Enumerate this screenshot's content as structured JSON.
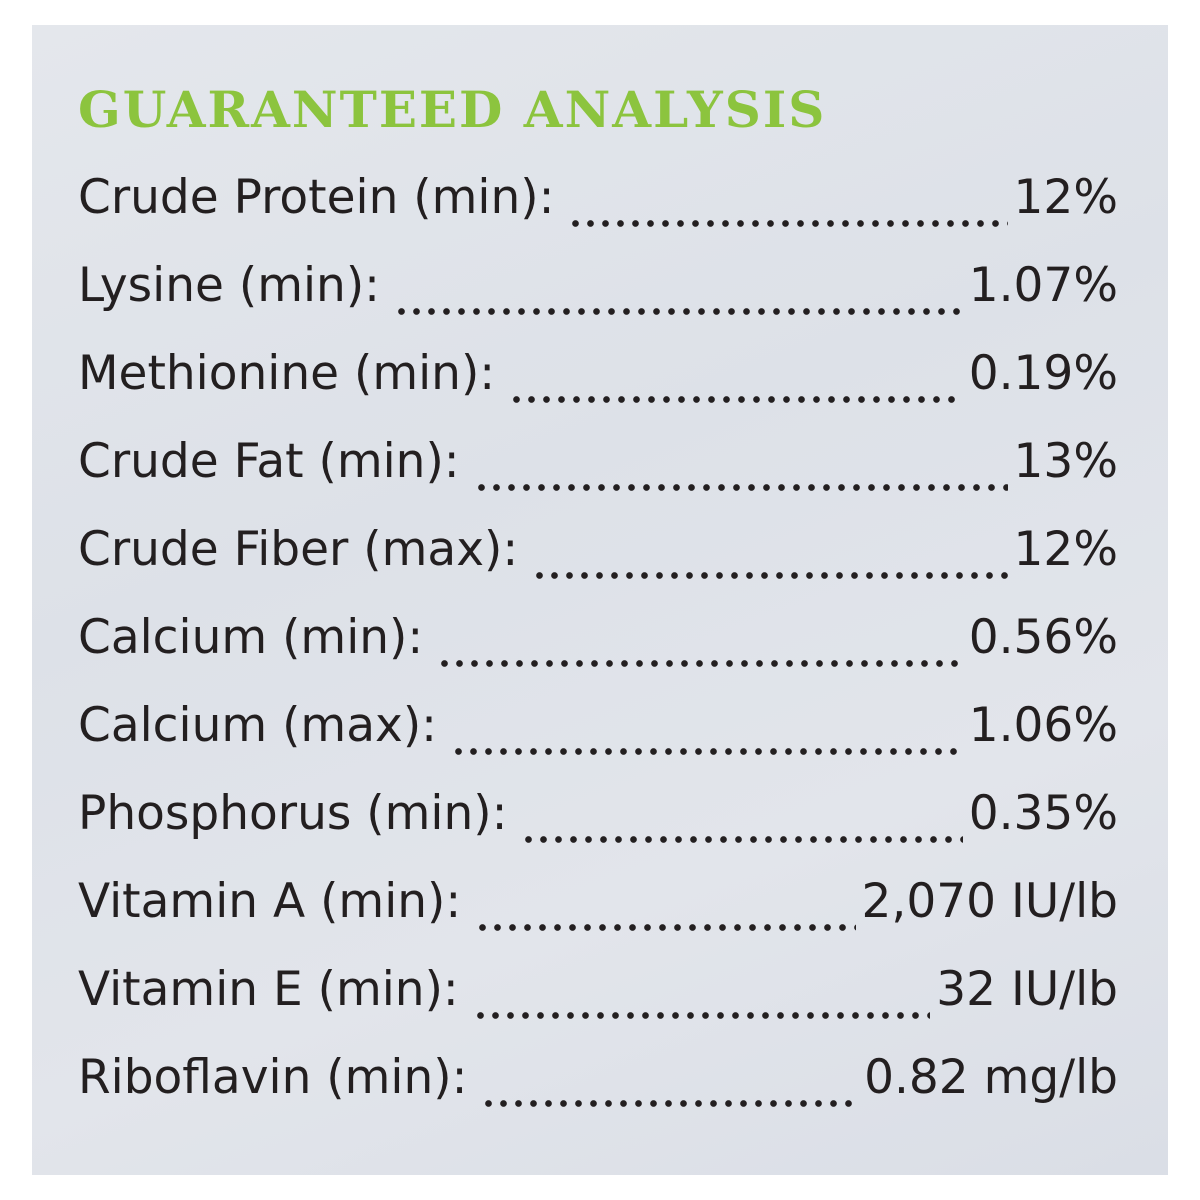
{
  "header": {
    "title": "GUARANTEED ANALYSIS"
  },
  "rows": [
    {
      "label": "Crude Protein (min):",
      "value": "12%"
    },
    {
      "label": "Lysine (min):",
      "value": "1.07%"
    },
    {
      "label": "Methionine (min):",
      "value": "0.19%"
    },
    {
      "label": "Crude Fat (min):",
      "value": "13%"
    },
    {
      "label": "Crude Fiber (max):",
      "value": "12%"
    },
    {
      "label": "Calcium (min):",
      "value": "0.56%"
    },
    {
      "label": "Calcium (max):",
      "value": "1.06%"
    },
    {
      "label": "Phosphorus (min):",
      "value": "0.35%"
    },
    {
      "label": "Vitamin A (min):",
      "value": "2,070 IU/lb"
    },
    {
      "label": "Vitamin E (min):",
      "value": "32 IU/lb"
    },
    {
      "label": "Riboflavin (min):",
      "value": "0.82 mg/lb"
    }
  ]
}
